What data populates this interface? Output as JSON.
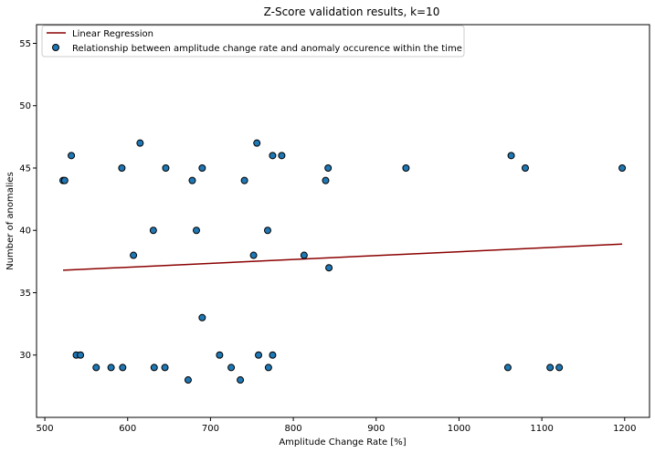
{
  "chart_data": {
    "type": "scatter",
    "title": "Z-Score validation results, k=10",
    "xlabel": "Amplitude Change Rate [%]",
    "ylabel": "Number of anomalies",
    "xlim": [
      490,
      1230
    ],
    "ylim": [
      25,
      56.5
    ],
    "xticks": [
      500,
      600,
      700,
      800,
      900,
      1000,
      1100,
      1200
    ],
    "yticks": [
      30,
      35,
      40,
      45,
      50,
      55
    ],
    "grid": false,
    "legend_position": "top-left",
    "series": [
      {
        "name": "Relationship between amplitude change rate and anomaly occurence within the time",
        "kind": "scatter",
        "color": "#1f77b4",
        "edge_color": "#000000",
        "points": [
          [
            522,
            44
          ],
          [
            524,
            44
          ],
          [
            532,
            46
          ],
          [
            538,
            30
          ],
          [
            543,
            30
          ],
          [
            562,
            29
          ],
          [
            580,
            29
          ],
          [
            593,
            45
          ],
          [
            594,
            29
          ],
          [
            607,
            38
          ],
          [
            615,
            47
          ],
          [
            631,
            40
          ],
          [
            632,
            29
          ],
          [
            645,
            29
          ],
          [
            646,
            45
          ],
          [
            673,
            28
          ],
          [
            678,
            44
          ],
          [
            683,
            40
          ],
          [
            690,
            45
          ],
          [
            690,
            33
          ],
          [
            711,
            30
          ],
          [
            725,
            29
          ],
          [
            736,
            28
          ],
          [
            741,
            44
          ],
          [
            752,
            38
          ],
          [
            756,
            47
          ],
          [
            758,
            30
          ],
          [
            769,
            40
          ],
          [
            770,
            29
          ],
          [
            775,
            46
          ],
          [
            775,
            30
          ],
          [
            786,
            46
          ],
          [
            813,
            38
          ],
          [
            839,
            44
          ],
          [
            842,
            45
          ],
          [
            843,
            37
          ],
          [
            936,
            45
          ],
          [
            1059,
            29
          ],
          [
            1063,
            46
          ],
          [
            1080,
            45
          ],
          [
            1110,
            29
          ],
          [
            1121,
            29
          ],
          [
            1197,
            45
          ]
        ]
      },
      {
        "name": "Linear Regression",
        "kind": "line",
        "color": "#8b0000",
        "x": [
          522,
          1197
        ],
        "y": [
          36.8,
          38.9
        ]
      }
    ]
  }
}
